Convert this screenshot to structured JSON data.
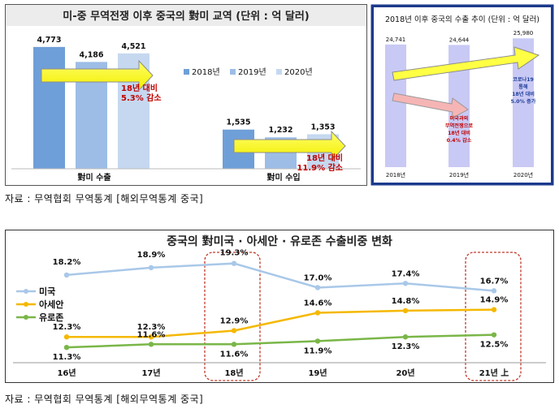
{
  "chart_data": [
    {
      "type": "bar",
      "title": "미-중 무역전쟁 이후 중국의 對미 교역 (단위 : 억 달러)",
      "categories": [
        "對미 수출",
        "對미 수입"
      ],
      "series": [
        {
          "name": "2018년",
          "values": [
            4773,
            1535
          ],
          "labels": [
            "4,773",
            "1,535"
          ],
          "color": "#6f9fd8"
        },
        {
          "name": "2019년",
          "values": [
            4186,
            1232
          ],
          "labels": [
            "4,186",
            "1,232"
          ],
          "color": "#9dbde6"
        },
        {
          "name": "2020년",
          "values": [
            4521,
            1353
          ],
          "labels": [
            "4,521",
            "1,353"
          ],
          "color": "#c5d8f0"
        }
      ],
      "ylim": [
        0,
        5500
      ],
      "legend_position": "right",
      "annotations": [
        {
          "text": [
            "18년 대비",
            "5.3% 감소"
          ],
          "color": "#c00000"
        },
        {
          "text": [
            "18년 대비",
            "11.9% 감소"
          ],
          "color": "#c00000"
        }
      ]
    },
    {
      "type": "bar",
      "title": "2018년 이후 중국의 수출 추이 (단위 : 억 달러)",
      "categories": [
        "2018년",
        "2019년",
        "2020년"
      ],
      "values": [
        24741,
        24644,
        25980
      ],
      "labels": [
        "24,741",
        "24,644",
        "25,980"
      ],
      "color": "#c9c9f5",
      "ylim": [
        0,
        27000
      ],
      "annotations": [
        {
          "text": [
            "미국과의",
            "무역전쟁으로",
            "18년 대비",
            "0.4% 감소"
          ],
          "color": "#c00000"
        },
        {
          "text": [
            "코로나19",
            "통해",
            "18년 대비",
            "5.0% 증가"
          ],
          "color": "#1f3f99"
        }
      ]
    },
    {
      "type": "line",
      "title": "중국의 對미국 · 아세안 · 유로존 수출비중 변화",
      "categories": [
        "16년",
        "17년",
        "18년",
        "19년",
        "20년",
        "21년 上"
      ],
      "ylim": [
        0,
        22
      ],
      "legend_position": "left",
      "series": [
        {
          "name": "미국",
          "values": [
            18.2,
            18.9,
            19.3,
            17.0,
            17.4,
            16.7
          ],
          "labels": [
            "18.2%",
            "18.9%",
            "19.3%",
            "17.0%",
            "17.4%",
            "16.7%"
          ],
          "color": "#a9c8e8"
        },
        {
          "name": "아세안",
          "values": [
            12.3,
            12.3,
            12.9,
            14.6,
            14.8,
            14.9
          ],
          "labels": [
            "12.3%",
            "12.3%",
            "12.9%",
            "14.6%",
            "14.8%",
            "14.9%"
          ],
          "color": "#f5b800"
        },
        {
          "name": "유로존",
          "values": [
            11.3,
            11.6,
            11.6,
            11.9,
            12.3,
            12.5
          ],
          "labels": [
            "11.3%",
            "11.6%",
            "11.6%",
            "11.9%",
            "12.3%",
            "12.5%"
          ],
          "color": "#7ab648"
        }
      ]
    }
  ],
  "sources": {
    "top": "자료 : 무역협회 무역통계 [해외무역통계 중국]",
    "bottom": "자료 : 무역협회 무역통계 [해외무역통계 중국]"
  }
}
